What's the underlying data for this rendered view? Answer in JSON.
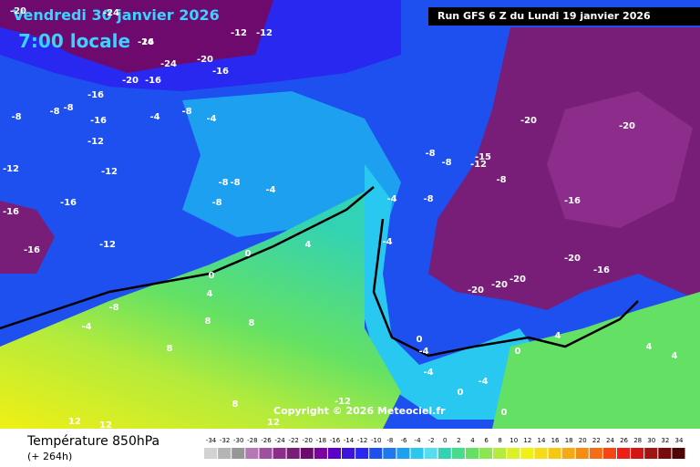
{
  "header": {
    "date": "Vendredi 30 janvier 2026",
    "time": "7:00 locale",
    "run": "Run GFS 6 Z du Lundi 19 janvier 2026"
  },
  "footer": {
    "title": "Température 850hPa",
    "lead": "(+ 264h)",
    "copyright": "Copyright © 2026 Meteociel.fr"
  },
  "legend": {
    "values": [
      -34,
      -32,
      -30,
      -28,
      -26,
      -24,
      -22,
      -20,
      -18,
      -16,
      -14,
      -12,
      -10,
      -8,
      -6,
      -4,
      -2,
      0,
      2,
      4,
      6,
      8,
      10,
      12,
      14,
      16,
      18,
      20,
      22,
      24,
      26,
      28,
      30,
      32,
      34
    ],
    "colors": [
      "#d2d2d2",
      "#b4b4b4",
      "#969696",
      "#b478b4",
      "#a050a0",
      "#8c2d8c",
      "#781e78",
      "#6e0a6e",
      "#7d00a0",
      "#5a00c8",
      "#3c14dc",
      "#2828f0",
      "#1e50f0",
      "#1e78f0",
      "#1ea0f0",
      "#28c8f0",
      "#5adcf0",
      "#32d2b4",
      "#46dc8c",
      "#64e164",
      "#8ce650",
      "#b4eb3c",
      "#dcf028",
      "#f0f014",
      "#f5dc14",
      "#f5c814",
      "#f5aa14",
      "#f58c14",
      "#f56e14",
      "#f54614",
      "#f01e14",
      "#d21414",
      "#a01414",
      "#780a0a",
      "#500505"
    ]
  },
  "map_labels": [
    -24,
    -20,
    -12,
    -24,
    -24,
    -20,
    -16,
    -20,
    -16,
    -12,
    -16,
    -4,
    -8,
    -8,
    -16,
    -16,
    -8,
    -8,
    -4,
    -12,
    -16,
    -12,
    -12,
    -8,
    -8,
    -4,
    -8,
    -16,
    -12,
    -16,
    -20,
    -20,
    -16,
    -20,
    -20,
    -20,
    -20,
    -16,
    -8,
    -8,
    -12,
    -15,
    -8,
    -8,
    -4,
    -4,
    0,
    0,
    4,
    4,
    8,
    8,
    8,
    -8,
    -4,
    0,
    -4,
    -4,
    0,
    -4,
    0,
    0,
    4,
    4,
    4,
    8,
    12,
    12,
    12,
    -12
  ]
}
